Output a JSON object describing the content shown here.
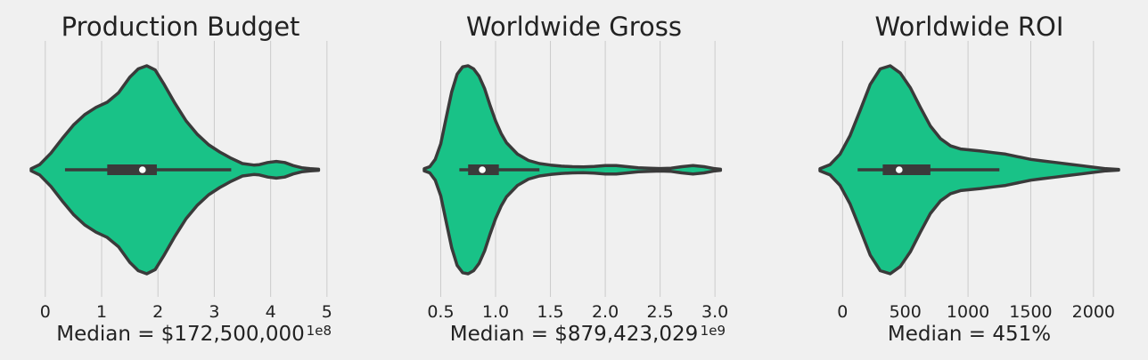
{
  "chart_data": [
    {
      "type": "violin",
      "title": "Production Budget",
      "xlabel": "Median = $172,500,000",
      "offset_text": "1e8",
      "xlim": [
        -0.25,
        5.05
      ],
      "ticks": [
        0,
        1,
        2,
        3,
        4,
        5
      ],
      "tick_labels": [
        "0",
        "1",
        "2",
        "3",
        "4",
        "5"
      ],
      "grid": true,
      "color": "#19c287",
      "box": {
        "whisker_low": 0.35,
        "q1": 1.1,
        "median": 1.725,
        "q3": 1.98,
        "whisker_high": 3.3
      },
      "density": {
        "x": [
          -0.25,
          -0.1,
          0.1,
          0.3,
          0.5,
          0.7,
          0.9,
          1.1,
          1.3,
          1.5,
          1.65,
          1.8,
          1.95,
          2.1,
          2.3,
          2.5,
          2.7,
          2.9,
          3.1,
          3.3,
          3.5,
          3.7,
          3.8,
          3.95,
          4.1,
          4.25,
          4.4,
          4.55,
          4.7,
          4.85
        ],
        "width": [
          0.01,
          0.05,
          0.16,
          0.3,
          0.43,
          0.53,
          0.6,
          0.65,
          0.74,
          0.89,
          0.97,
          1.0,
          0.96,
          0.83,
          0.64,
          0.47,
          0.34,
          0.24,
          0.17,
          0.11,
          0.06,
          0.045,
          0.05,
          0.07,
          0.08,
          0.07,
          0.04,
          0.02,
          0.01,
          0.005
        ]
      }
    },
    {
      "type": "violin",
      "title": "Worldwide Gross",
      "xlabel": "Median = $879,423,029",
      "offset_text": "1e9",
      "xlim": [
        0.35,
        3.08
      ],
      "ticks": [
        0.5,
        1.0,
        1.5,
        2.0,
        2.5,
        3.0
      ],
      "tick_labels": [
        "0.5",
        "1.0",
        "1.5",
        "2.0",
        "2.5",
        "3.0"
      ],
      "grid": true,
      "color": "#19c287",
      "box": {
        "whisker_low": 0.67,
        "q1": 0.75,
        "median": 0.879,
        "q3": 1.03,
        "whisker_high": 1.4
      },
      "density": {
        "x": [
          0.35,
          0.4,
          0.45,
          0.5,
          0.55,
          0.6,
          0.65,
          0.7,
          0.75,
          0.8,
          0.85,
          0.9,
          0.95,
          1.0,
          1.05,
          1.1,
          1.2,
          1.3,
          1.4,
          1.5,
          1.6,
          1.7,
          1.8,
          1.9,
          2.0,
          2.1,
          2.2,
          2.3,
          2.4,
          2.5,
          2.6,
          2.7,
          2.8,
          2.9,
          3.0,
          3.05
        ],
        "width": [
          0.01,
          0.03,
          0.1,
          0.25,
          0.5,
          0.75,
          0.92,
          0.99,
          1.0,
          0.97,
          0.9,
          0.78,
          0.62,
          0.47,
          0.35,
          0.26,
          0.15,
          0.09,
          0.06,
          0.045,
          0.035,
          0.03,
          0.028,
          0.032,
          0.04,
          0.04,
          0.03,
          0.02,
          0.015,
          0.012,
          0.015,
          0.03,
          0.04,
          0.03,
          0.01,
          0.005
        ]
      }
    },
    {
      "type": "violin",
      "title": "Worldwide ROI",
      "xlabel": "Median = 451%",
      "offset_text": "",
      "xlim": [
        -180,
        2200
      ],
      "ticks": [
        0,
        500,
        1000,
        1500,
        2000
      ],
      "tick_labels": [
        "0",
        "500",
        "1000",
        "1500",
        "2000"
      ],
      "grid": true,
      "color": "#19c287",
      "box": {
        "whisker_low": 120,
        "q1": 320,
        "median": 451,
        "q3": 700,
        "whisker_high": 1250
      },
      "density": {
        "x": [
          -180,
          -100,
          -20,
          60,
          140,
          220,
          300,
          380,
          460,
          540,
          620,
          700,
          780,
          860,
          940,
          1020,
          1100,
          1200,
          1300,
          1400,
          1500,
          1600,
          1700,
          1800,
          1900,
          2000,
          2100,
          2200
        ],
        "width": [
          0.01,
          0.05,
          0.15,
          0.33,
          0.57,
          0.82,
          0.97,
          1.0,
          0.93,
          0.79,
          0.6,
          0.42,
          0.3,
          0.23,
          0.2,
          0.19,
          0.18,
          0.165,
          0.15,
          0.125,
          0.1,
          0.085,
          0.07,
          0.055,
          0.04,
          0.025,
          0.01,
          0.003
        ]
      }
    }
  ]
}
